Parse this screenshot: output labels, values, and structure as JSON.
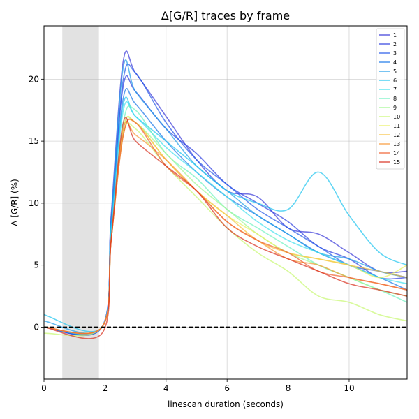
{
  "chart_data": {
    "type": "line",
    "title": "Δ[G/R] traces by frame",
    "xlabel": "linescan duration (seconds)",
    "ylabel": "Δ [G/R] (%)",
    "xlim": [
      0,
      11.9
    ],
    "ylim": [
      -4.2,
      24.3
    ],
    "xticks": [
      0,
      2,
      4,
      6,
      8,
      10
    ],
    "yticks": [
      0,
      5,
      10,
      15,
      20
    ],
    "grid": true,
    "legend_position": "top-right",
    "baseline": {
      "y": 0,
      "style": "dashed",
      "color": "#000000"
    },
    "shaded_region": {
      "x": [
        0.6,
        1.8
      ],
      "color": "#e2e2e2"
    },
    "series": [
      {
        "name": "1",
        "color": "#3a3ad8",
        "x": [
          0,
          1.9,
          2.2,
          2.6,
          3.0,
          4.0,
          5.0,
          6.0,
          7.0,
          8.0,
          9.0,
          10.0,
          11.0,
          11.9
        ],
        "y": [
          0,
          0,
          9,
          21.5,
          20.5,
          17,
          13.5,
          11,
          10.5,
          8,
          7.5,
          6,
          4.5,
          4.5
        ]
      },
      {
        "name": "2",
        "color": "#2e3fe0",
        "x": [
          0,
          1.9,
          2.2,
          2.6,
          3.0,
          4.0,
          5.0,
          6.0,
          7.0,
          8.0,
          9.0,
          10.0,
          11.0,
          11.9
        ],
        "y": [
          0,
          0,
          8.5,
          19.5,
          19,
          16,
          14,
          11.5,
          10,
          8.5,
          6.5,
          5.5,
          4,
          4
        ]
      },
      {
        "name": "3",
        "color": "#2458e8",
        "x": [
          0,
          1.9,
          2.2,
          2.6,
          3.0,
          4.0,
          5.0,
          6.0,
          7.0,
          8.0,
          9.0,
          10.0,
          11.0,
          11.9
        ],
        "y": [
          0,
          0,
          8.5,
          20,
          20.5,
          16.5,
          13.5,
          11.5,
          9.5,
          8,
          6.5,
          5,
          4.5,
          4
        ]
      },
      {
        "name": "4",
        "color": "#1a78e8",
        "x": [
          0,
          1.9,
          2.2,
          2.6,
          3.0,
          4.0,
          5.0,
          6.0,
          7.0,
          8.0,
          9.0,
          10.0,
          11.0,
          11.9
        ],
        "y": [
          0,
          0,
          8,
          18.5,
          18,
          15,
          12.5,
          10.5,
          9,
          7.5,
          6,
          5,
          4,
          3
        ]
      },
      {
        "name": "5",
        "color": "#1f9de8",
        "x": [
          0,
          1.9,
          2.2,
          2.6,
          3.0,
          4.0,
          5.0,
          6.0,
          7.0,
          8.0,
          9.0,
          10.0,
          11.0,
          11.9
        ],
        "y": [
          0.5,
          0,
          8.5,
          21,
          19,
          16,
          13,
          11,
          9,
          7.5,
          6,
          5.5,
          4.5,
          4
        ]
      },
      {
        "name": "6",
        "color": "#20c4f0",
        "x": [
          0,
          1.9,
          2.2,
          2.6,
          3.0,
          4.0,
          5.0,
          6.0,
          7.0,
          8.0,
          9.0,
          10.0,
          11.0,
          11.9
        ],
        "y": [
          1,
          0,
          8,
          18,
          17,
          15,
          13,
          11,
          10,
          9.5,
          12.5,
          9,
          6,
          5
        ]
      },
      {
        "name": "7",
        "color": "#40e0ec",
        "x": [
          0,
          1.9,
          2.2,
          2.6,
          3.0,
          4.0,
          5.0,
          6.0,
          7.0,
          8.0,
          9.0,
          10.0,
          11.0,
          11.9
        ],
        "y": [
          0,
          0,
          7.5,
          17.5,
          17,
          14.5,
          12.5,
          10.5,
          8.5,
          7,
          6,
          5,
          4,
          3.5
        ]
      },
      {
        "name": "8",
        "color": "#6ef2c0",
        "x": [
          0,
          1.9,
          2.2,
          2.6,
          3.0,
          4.0,
          5.0,
          6.0,
          7.0,
          8.0,
          9.0,
          10.0,
          11.0,
          11.9
        ],
        "y": [
          0,
          0,
          7,
          16.5,
          17.5,
          14,
          12,
          9.5,
          8,
          6.5,
          5,
          4,
          3,
          2
        ]
      },
      {
        "name": "9",
        "color": "#a0f890",
        "x": [
          0,
          1.9,
          2.2,
          2.6,
          3.0,
          4.0,
          5.0,
          6.0,
          7.0,
          8.0,
          9.0,
          10.0,
          11.0,
          11.9
        ],
        "y": [
          0,
          0,
          7,
          16,
          16.5,
          14,
          11.5,
          9.5,
          7.5,
          6,
          5,
          4,
          3,
          2.5
        ]
      },
      {
        "name": "10",
        "color": "#c8f870",
        "x": [
          0,
          1.9,
          2.2,
          2.6,
          3.0,
          4.0,
          5.0,
          6.0,
          7.0,
          8.0,
          9.0,
          10.0,
          11.0,
          11.9
        ],
        "y": [
          -0.5,
          0,
          7,
          15.5,
          16,
          13,
          10.5,
          8,
          6,
          4.5,
          2.5,
          2,
          1,
          0.5
        ]
      },
      {
        "name": "11",
        "color": "#e8f060",
        "x": [
          0,
          1.9,
          2.2,
          2.6,
          3.0,
          4.0,
          5.0,
          6.0,
          7.0,
          8.0,
          9.0,
          10.0,
          11.0,
          11.9
        ],
        "y": [
          0,
          0,
          7,
          16,
          16.5,
          13.5,
          11,
          9,
          7.5,
          6,
          5.5,
          5,
          4,
          5
        ]
      },
      {
        "name": "12",
        "color": "#f8c040",
        "x": [
          0,
          1.9,
          2.2,
          2.6,
          3.0,
          4.0,
          5.0,
          6.0,
          7.0,
          8.0,
          9.0,
          10.0,
          11.0,
          11.9
        ],
        "y": [
          0,
          0,
          7,
          15.5,
          16.5,
          13.5,
          11,
          9,
          7,
          6,
          5.5,
          5,
          4.5,
          4
        ]
      },
      {
        "name": "13",
        "color": "#f89838",
        "x": [
          0,
          1.9,
          2.2,
          2.6,
          3.0,
          4.0,
          5.0,
          6.0,
          7.0,
          8.0,
          9.0,
          10.0,
          11.0,
          11.9
        ],
        "y": [
          0,
          0,
          7,
          16,
          15.5,
          13.5,
          11,
          8.5,
          7,
          5.5,
          5,
          4,
          3.5,
          3
        ]
      },
      {
        "name": "14",
        "color": "#f06030",
        "x": [
          0,
          1.9,
          2.2,
          2.6,
          3.0,
          4.0,
          5.0,
          6.0,
          7.0,
          8.0,
          9.0,
          10.0,
          11.0,
          11.9
        ],
        "y": [
          0,
          0,
          7,
          15.5,
          16.5,
          13,
          11,
          8.5,
          7,
          6,
          4.5,
          4,
          3.5,
          3
        ]
      },
      {
        "name": "15",
        "color": "#d83020",
        "x": [
          0,
          1.9,
          2.2,
          2.6,
          3.0,
          4.0,
          5.0,
          6.0,
          7.0,
          8.0,
          9.0,
          10.0,
          11.0,
          11.9
        ],
        "y": [
          0,
          -0.5,
          7,
          16.5,
          15,
          13,
          11,
          8,
          6.5,
          5.5,
          4.5,
          3.5,
          3,
          2.5
        ]
      }
    ]
  }
}
